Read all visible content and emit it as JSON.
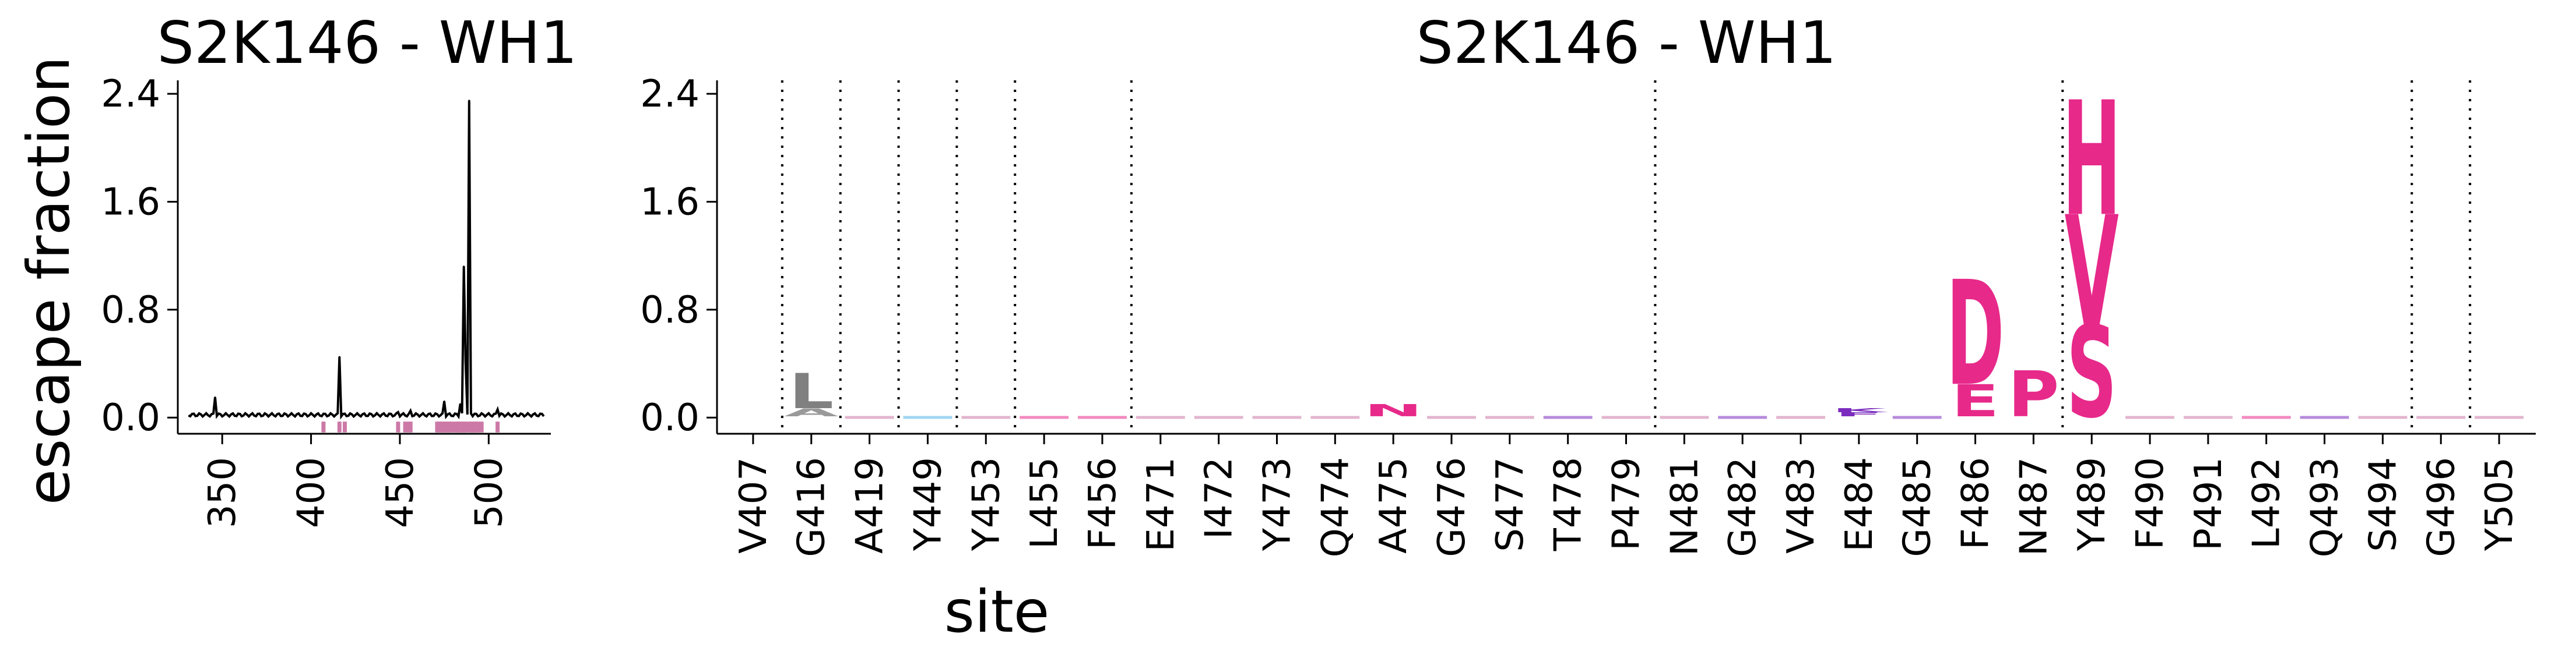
{
  "chart_data": [
    {
      "id": "line",
      "type": "line",
      "title": "S2K146 - WH1",
      "ylabel": "escape fraction",
      "xlabel": "",
      "xlim": [
        325,
        535
      ],
      "ylim": [
        -0.12,
        2.5
      ],
      "yticks": [
        0.0,
        0.8,
        1.6,
        2.4
      ],
      "ytick_labels": [
        "0.0",
        "0.8",
        "1.6",
        "2.4"
      ],
      "xticks": [
        350,
        400,
        450,
        500
      ],
      "xtick_labels": [
        "350",
        "400",
        "450",
        "500"
      ],
      "line_color": "#000000",
      "highlight_color": "#cc79a7",
      "highlight_sites": [
        407,
        416,
        419,
        449,
        453,
        455,
        456,
        471,
        472,
        473,
        474,
        475,
        476,
        477,
        478,
        479,
        481,
        482,
        483,
        484,
        485,
        486,
        487,
        489,
        490,
        491,
        492,
        493,
        494,
        496,
        505
      ],
      "peaks": [
        {
          "site": 346,
          "value": 0.15
        },
        {
          "site": 416,
          "value": 0.45
        },
        {
          "site": 449,
          "value": 0.04
        },
        {
          "site": 456,
          "value": 0.05
        },
        {
          "site": 475,
          "value": 0.12
        },
        {
          "site": 484,
          "value": 0.1
        },
        {
          "site": 486,
          "value": 1.12
        },
        {
          "site": 487,
          "value": 0.42
        },
        {
          "site": 489,
          "value": 2.35
        },
        {
          "site": 490,
          "value": 0.03
        },
        {
          "site": 505,
          "value": 0.06
        }
      ],
      "baseline": 0.02,
      "grid": false,
      "legend": "none"
    },
    {
      "id": "logo",
      "type": "logo",
      "title": "S2K146 - WH1",
      "xlabel": "site",
      "ylabel": "",
      "ylim": [
        -0.12,
        2.5
      ],
      "yticks": [
        0.0,
        0.8,
        1.6,
        2.4
      ],
      "ytick_labels": [
        "0.0",
        "0.8",
        "1.6",
        "2.4"
      ],
      "sites": [
        "V407",
        "G416",
        "A419",
        "Y449",
        "Y453",
        "L455",
        "F456",
        "E471",
        "I472",
        "Y473",
        "Q474",
        "A475",
        "G476",
        "S477",
        "T478",
        "P479",
        "N481",
        "G482",
        "V483",
        "E484",
        "G485",
        "F486",
        "N487",
        "Y489",
        "F490",
        "P491",
        "L492",
        "Q493",
        "S494",
        "G496",
        "Y505"
      ],
      "separators_after": [
        "V407",
        "G416",
        "A419",
        "Y449",
        "Y453",
        "F456",
        "P479",
        "N487",
        "S494",
        "G496"
      ],
      "letters": [
        {
          "site": "G416",
          "letter": "A",
          "value": 0.06,
          "color": "#999999"
        },
        {
          "site": "G416",
          "letter": "L",
          "value": 0.26,
          "color": "#808080"
        },
        {
          "site": "A475",
          "letter": "N",
          "value": 0.09,
          "color": "#e7298a"
        },
        {
          "site": "E484",
          "letter": "F",
          "value": 0.03,
          "color": "#7b2cbf"
        },
        {
          "site": "E484",
          "letter": "K",
          "value": 0.03,
          "color": "#7b2cbf"
        },
        {
          "site": "F486",
          "letter": "E",
          "value": 0.24,
          "color": "#e7298a"
        },
        {
          "site": "F486",
          "letter": "D",
          "value": 0.78,
          "color": "#e7298a"
        },
        {
          "site": "N487",
          "letter": "P",
          "value": 0.34,
          "color": "#e7298a"
        },
        {
          "site": "Y489",
          "letter": "S",
          "value": 0.68,
          "color": "#e7298a"
        },
        {
          "site": "Y489",
          "letter": "V",
          "value": 0.82,
          "color": "#e7298a"
        },
        {
          "site": "Y489",
          "letter": "H",
          "value": 0.85,
          "color": "#e7298a"
        }
      ],
      "faint_sites": [
        {
          "site": "A419",
          "color": "#cc79a7"
        },
        {
          "site": "Y449",
          "color": "#56b4e9"
        },
        {
          "site": "Y453",
          "color": "#cc79a7"
        },
        {
          "site": "L455",
          "color": "#e7298a"
        },
        {
          "site": "F456",
          "color": "#e7298a"
        },
        {
          "site": "E471",
          "color": "#cc79a7"
        },
        {
          "site": "I472",
          "color": "#cc79a7"
        },
        {
          "site": "Y473",
          "color": "#cc79a7"
        },
        {
          "site": "Q474",
          "color": "#cc79a7"
        },
        {
          "site": "G476",
          "color": "#cc79a7"
        },
        {
          "site": "S477",
          "color": "#cc79a7"
        },
        {
          "site": "T478",
          "color": "#7b2cbf"
        },
        {
          "site": "P479",
          "color": "#cc79a7"
        },
        {
          "site": "N481",
          "color": "#cc79a7"
        },
        {
          "site": "G482",
          "color": "#7b2cbf"
        },
        {
          "site": "V483",
          "color": "#cc79a7"
        },
        {
          "site": "G485",
          "color": "#7b2cbf"
        },
        {
          "site": "F490",
          "color": "#cc79a7"
        },
        {
          "site": "P491",
          "color": "#cc79a7"
        },
        {
          "site": "L492",
          "color": "#e7298a"
        },
        {
          "site": "Q493",
          "color": "#7b2cbf"
        },
        {
          "site": "S494",
          "color": "#cc79a7"
        },
        {
          "site": "G496",
          "color": "#cc79a7"
        },
        {
          "site": "Y505",
          "color": "#cc79a7"
        }
      ],
      "grid": false,
      "legend": "none"
    }
  ]
}
